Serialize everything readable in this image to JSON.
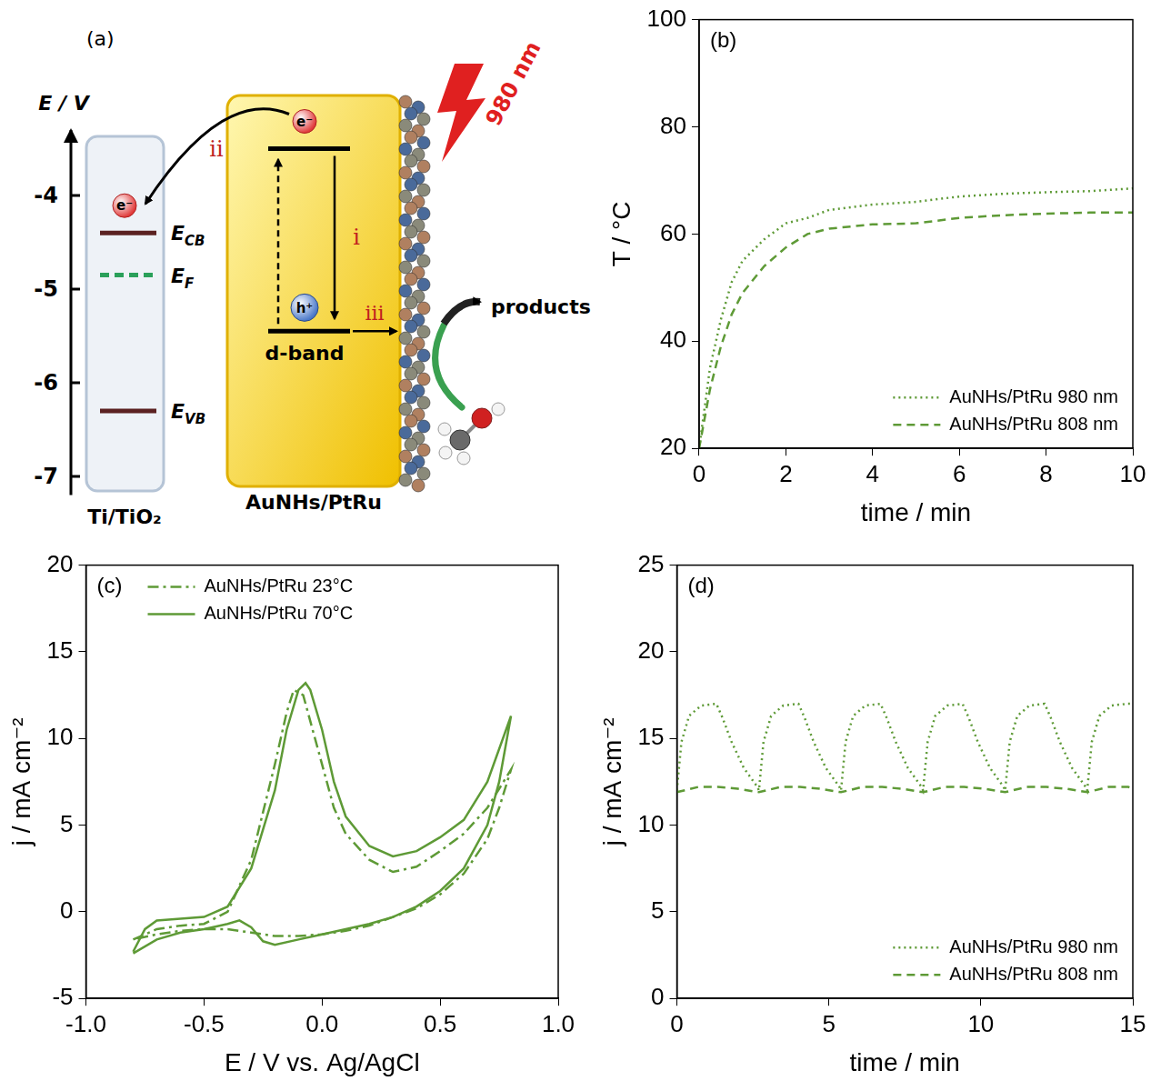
{
  "diagram": {
    "panel_label": "(a)",
    "energy_axis": {
      "title": "E / V",
      "lim": [
        -7.2,
        -3.3
      ],
      "ticks": [
        -4,
        -5,
        -6,
        -7
      ]
    },
    "semiconductor": {
      "name": "Ti/TiO₂",
      "electron": "e⁻",
      "levels": [
        {
          "symbol": "E",
          "subscript": "CB",
          "value": -4.4,
          "color": "#5b2222",
          "line_style": "solid"
        },
        {
          "symbol": "E",
          "subscript": "F",
          "value": -4.85,
          "color": "#2aa05a",
          "line_style": "dashed"
        },
        {
          "symbol": "E",
          "subscript": "VB",
          "value": -6.3,
          "color": "#5b2222",
          "line_style": "solid"
        }
      ]
    },
    "metal": {
      "name": "AuNHs/PtRu",
      "electron": "e⁻",
      "hole": "h⁺",
      "excited_level": -3.5,
      "d_band": -5.45,
      "d_band_label": "d-band"
    },
    "steps": {
      "excitation": "i",
      "injection": "ii",
      "oxidation": "iii"
    },
    "light": "980 nm",
    "products": "products"
  },
  "chart_data": [
    {
      "type": "line",
      "panel_label": "(b)",
      "x_label": "time / min",
      "y_label": "T / °C",
      "xlim": [
        0,
        10
      ],
      "xticks": [
        0,
        2,
        4,
        6,
        8,
        10
      ],
      "ylim": [
        20,
        100
      ],
      "yticks": [
        20,
        40,
        60,
        80,
        100
      ],
      "grid": false,
      "legend": "lower right",
      "series": [
        {
          "name": "AuNHs/PtRu 980 nm",
          "color": "#5e9a36",
          "line_style": "dotted",
          "x": [
            0,
            0.25,
            0.5,
            0.75,
            1,
            1.5,
            2,
            2.5,
            3,
            4,
            5,
            6,
            7,
            8,
            9,
            10
          ],
          "values": [
            20,
            35,
            44,
            51,
            55,
            59,
            62,
            63,
            64.5,
            65.5,
            66,
            67,
            67.5,
            67.8,
            68,
            68.5
          ]
        },
        {
          "name": "AuNHs/PtRu 808 nm",
          "color": "#5e9a36",
          "line_style": "dashed",
          "x": [
            0,
            0.25,
            0.5,
            0.75,
            1,
            1.5,
            2,
            2.5,
            3,
            4,
            5,
            6,
            7,
            8,
            9,
            10
          ],
          "values": [
            20,
            31,
            39,
            45,
            49,
            54,
            57.5,
            60,
            61,
            61.8,
            62,
            63,
            63.5,
            63.8,
            64,
            64
          ]
        }
      ]
    },
    {
      "type": "line",
      "panel_label": "(c)",
      "x_label": "E / V vs. Ag/AgCl",
      "y_label": "j / mA cm⁻²",
      "xlim": [
        -1,
        1
      ],
      "xticks": [
        {
          "value": -1,
          "label": "-1.0"
        },
        -0.5,
        {
          "value": 0,
          "label": "0.0"
        },
        0.5,
        {
          "value": 1,
          "label": "1.0"
        }
      ],
      "ylim": [
        -5,
        20
      ],
      "yticks": [
        -5,
        0,
        5,
        10,
        15,
        20
      ],
      "grid": false,
      "legend": "upper left",
      "series": [
        {
          "name": "AuNHs/PtRu 23°C",
          "color": "#5e9a36",
          "line_style": "dashdot",
          "x": [
            -0.8,
            -0.7,
            -0.6,
            -0.5,
            -0.4,
            -0.3,
            -0.2,
            -0.15,
            -0.12,
            -0.08,
            -0.05,
            0,
            0.05,
            0.1,
            0.2,
            0.3,
            0.4,
            0.5,
            0.6,
            0.7,
            0.8,
            0.75,
            0.7,
            0.6,
            0.5,
            0.4,
            0.3,
            0.2,
            0.1,
            0,
            -0.1,
            -0.2,
            -0.3,
            -0.4,
            -0.5,
            -0.6,
            -0.7,
            -0.8
          ],
          "values": [
            -1.6,
            -1.0,
            -0.8,
            -0.7,
            0.0,
            3,
            8.5,
            11.5,
            12.8,
            12.5,
            11,
            8.5,
            6,
            4.5,
            3,
            2.3,
            2.6,
            3.5,
            4.5,
            6.0,
            8.2,
            6.0,
            4.2,
            2.2,
            1.0,
            0.2,
            -0.3,
            -0.8,
            -1.1,
            -1.3,
            -1.4,
            -1.4,
            -1.2,
            -1.0,
            -1.0,
            -1.1,
            -1.3,
            -1.6
          ]
        },
        {
          "name": "AuNHs/PtRu 70°C",
          "color": "#5e9a36",
          "line_style": "solid",
          "x": [
            -0.8,
            -0.75,
            -0.7,
            -0.6,
            -0.5,
            -0.4,
            -0.3,
            -0.2,
            -0.15,
            -0.1,
            -0.07,
            -0.05,
            0,
            0.05,
            0.1,
            0.2,
            0.3,
            0.4,
            0.5,
            0.6,
            0.7,
            0.8,
            0.75,
            0.7,
            0.6,
            0.5,
            0.4,
            0.3,
            0.2,
            0.1,
            0,
            -0.1,
            -0.2,
            -0.25,
            -0.3,
            -0.35,
            -0.4,
            -0.5,
            -0.6,
            -0.7,
            -0.8
          ],
          "values": [
            -2.3,
            -1.0,
            -0.5,
            -0.4,
            -0.3,
            0.3,
            2.5,
            7,
            10.5,
            12.8,
            13.2,
            12.8,
            10.5,
            7.5,
            5.5,
            3.8,
            3.2,
            3.5,
            4.3,
            5.3,
            7.5,
            11.3,
            7.5,
            5.0,
            2.5,
            1.2,
            0.3,
            -0.3,
            -0.7,
            -1.0,
            -1.3,
            -1.6,
            -1.9,
            -1.7,
            -0.9,
            -0.5,
            -0.7,
            -1.0,
            -1.2,
            -1.6,
            -2.4
          ]
        }
      ]
    },
    {
      "type": "line",
      "panel_label": "(d)",
      "x_label": "time / min",
      "y_label": "j / mA cm⁻²",
      "xlim": [
        0,
        15
      ],
      "xticks": [
        0,
        5,
        10,
        15
      ],
      "ylim": [
        0,
        25
      ],
      "yticks": [
        0,
        5,
        10,
        15,
        20,
        25
      ],
      "grid": false,
      "legend": "lower right",
      "series": [
        {
          "name": "AuNHs/PtRu 980 nm",
          "color": "#5e9a36",
          "line_style": "dotted",
          "x": [
            0,
            0.15,
            0.4,
            0.8,
            1.3,
            1.5,
            1.8,
            2.2,
            2.65,
            2.7,
            2.85,
            3.1,
            3.5,
            4.0,
            4.2,
            4.5,
            4.9,
            5.35,
            5.4,
            5.55,
            5.8,
            6.2,
            6.7,
            6.9,
            7.2,
            7.6,
            8.05,
            8.1,
            8.25,
            8.5,
            8.9,
            9.4,
            9.6,
            9.9,
            10.3,
            10.75,
            10.8,
            10.95,
            11.2,
            11.6,
            12.1,
            12.3,
            12.6,
            13.0,
            13.45,
            13.5,
            13.65,
            13.9,
            14.3,
            14.8,
            15
          ],
          "values": [
            12,
            14.8,
            16.3,
            16.9,
            17,
            16.2,
            14.8,
            13.3,
            12.2,
            12,
            14.8,
            16.3,
            16.9,
            17,
            16.2,
            14.8,
            13.3,
            12.2,
            12,
            14.8,
            16.3,
            16.9,
            17,
            16.2,
            14.8,
            13.3,
            12.2,
            12,
            14.8,
            16.3,
            16.9,
            17,
            16.2,
            14.8,
            13.3,
            12.2,
            12,
            14.8,
            16.3,
            16.9,
            17,
            16.2,
            14.8,
            13.3,
            12.2,
            12,
            14.8,
            16.3,
            16.9,
            17,
            17
          ]
        },
        {
          "name": "AuNHs/PtRu 808 nm",
          "color": "#5e9a36",
          "line_style": "dashed",
          "x": [
            0,
            0.7,
            1.35,
            2.0,
            2.7,
            3.4,
            4.05,
            4.7,
            5.4,
            6.1,
            6.75,
            7.4,
            8.1,
            8.8,
            9.45,
            10.1,
            10.8,
            11.5,
            12.15,
            12.8,
            13.5,
            14.2,
            14.85,
            15
          ],
          "values": [
            11.9,
            12.2,
            12.2,
            12.1,
            11.9,
            12.2,
            12.2,
            12.1,
            11.9,
            12.2,
            12.2,
            12.1,
            11.9,
            12.2,
            12.2,
            12.1,
            11.9,
            12.2,
            12.2,
            12.1,
            11.9,
            12.2,
            12.2,
            12.1
          ]
        }
      ]
    }
  ]
}
